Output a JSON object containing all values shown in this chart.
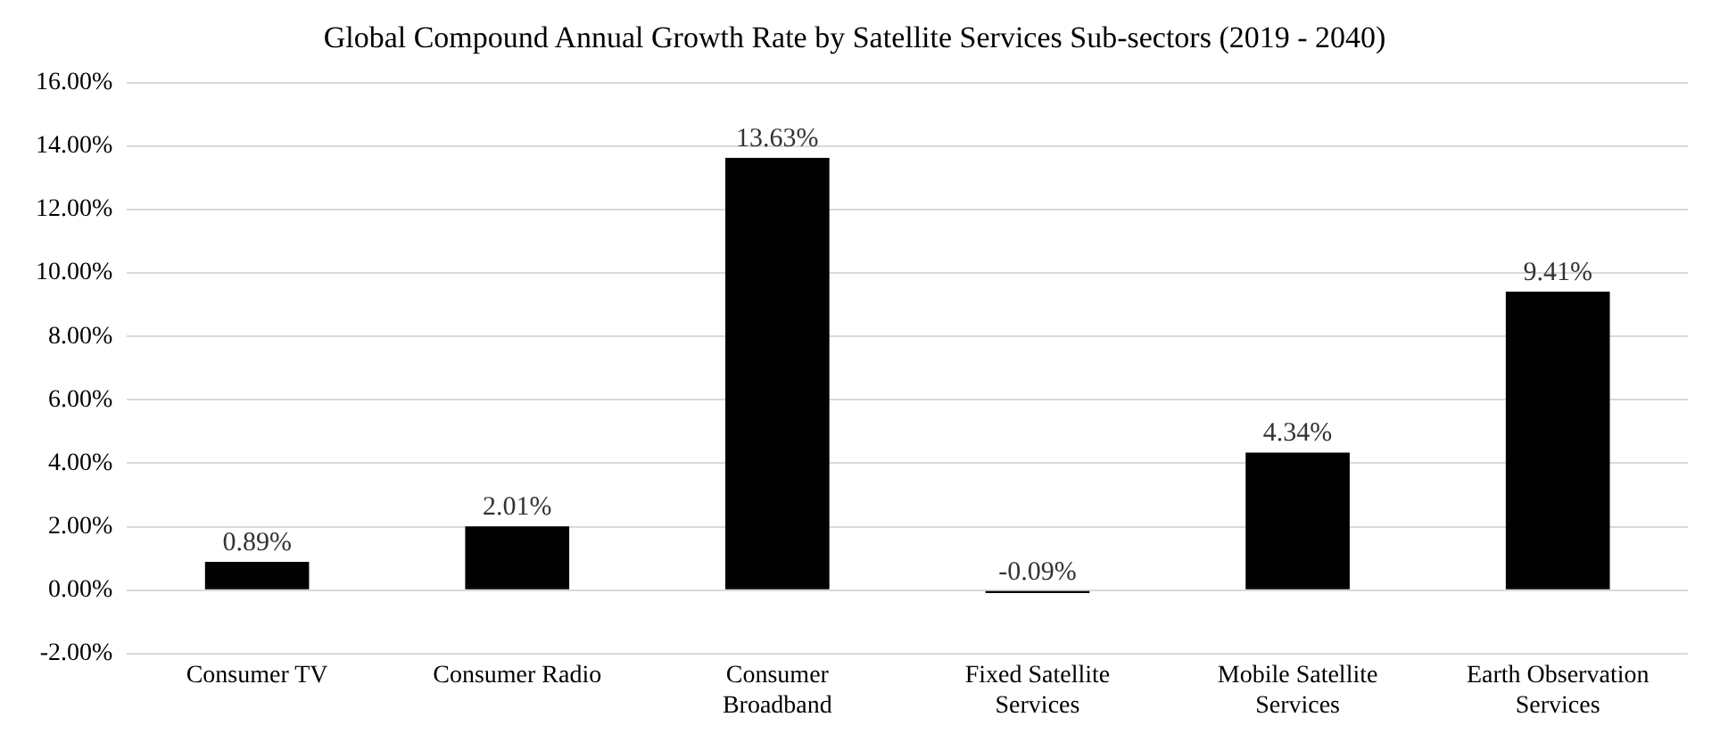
{
  "chart_data": {
    "type": "bar",
    "title": "Global Compound Annual Growth Rate by Satellite Services Sub-sectors (2019 - 2040)",
    "categories": [
      "Consumer TV",
      "Consumer Radio",
      "Consumer Broadband",
      "Fixed Satellite Services",
      "Mobile Satellite Services",
      "Earth Observation Services"
    ],
    "values": [
      0.89,
      2.01,
      13.63,
      -0.09,
      4.34,
      9.41
    ],
    "value_labels": [
      "0.89%",
      "2.01%",
      "13.63%",
      "-0.09%",
      "4.34%",
      "9.41%"
    ],
    "color": "#000000",
    "ylim": [
      -2,
      16
    ],
    "yticks": [
      {
        "value": -2,
        "label": "-2.00%"
      },
      {
        "value": 0,
        "label": "0.00%"
      },
      {
        "value": 2,
        "label": "2.00%"
      },
      {
        "value": 4,
        "label": "4.00%"
      },
      {
        "value": 6,
        "label": "6.00%"
      },
      {
        "value": 8,
        "label": "8.00%"
      },
      {
        "value": 10,
        "label": "10.00%"
      },
      {
        "value": 12,
        "label": "12.00%"
      },
      {
        "value": 14,
        "label": "14.00%"
      },
      {
        "value": 16,
        "label": "16.00%"
      }
    ],
    "grid": "y",
    "legend": false
  }
}
